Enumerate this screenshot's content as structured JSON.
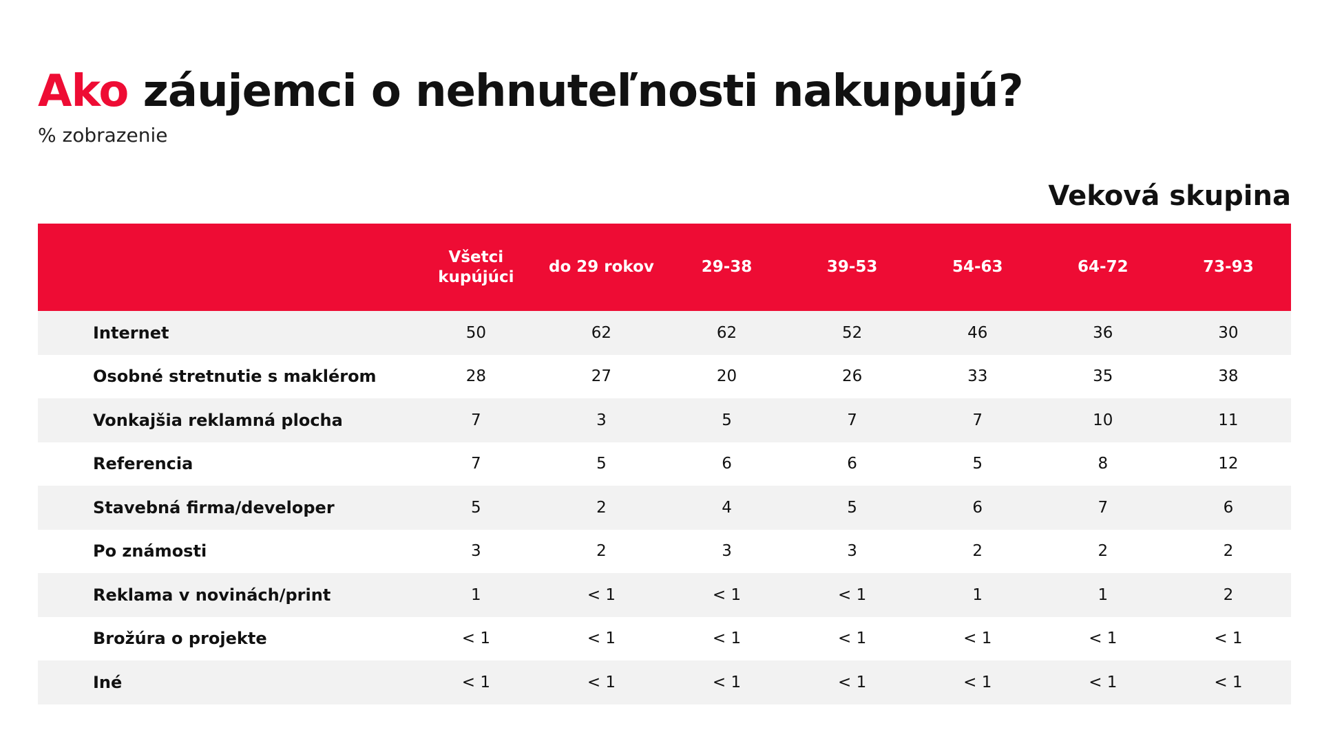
{
  "title": {
    "accent": "Ako",
    "rest": " záujemci o nehnuteľnosti nakupujú?"
  },
  "subtitle": "% zobrazenie",
  "group_label": "Veková skupina",
  "colors": {
    "accent": "#ee0c34",
    "row_stripe": "#f2f2f2"
  },
  "chart_data": {
    "type": "table",
    "title": "Ako záujemci o nehnuteľnosti nakupujú?",
    "subtitle": "% zobrazenie",
    "column_group": "Veková skupina",
    "columns": [
      "Všetci kupújúci",
      "do 29 rokov",
      "29-38",
      "39-53",
      "54-63",
      "64-72",
      "73-93"
    ],
    "rows": [
      {
        "label": "Internet",
        "values": [
          "50",
          "62",
          "62",
          "52",
          "46",
          "36",
          "30"
        ]
      },
      {
        "label": "Osobné stretnutie s maklérom",
        "values": [
          "28",
          "27",
          "20",
          "26",
          "33",
          "35",
          "38"
        ]
      },
      {
        "label": "Vonkajšia reklamná plocha",
        "values": [
          "7",
          "3",
          "5",
          "7",
          "7",
          "10",
          "11"
        ]
      },
      {
        "label": "Referencia",
        "values": [
          "7",
          "5",
          "6",
          "6",
          "5",
          "8",
          "12"
        ]
      },
      {
        "label": "Stavebná firma/developer",
        "values": [
          "5",
          "2",
          "4",
          "5",
          "6",
          "7",
          "6"
        ]
      },
      {
        "label": "Po známosti",
        "values": [
          "3",
          "2",
          "3",
          "3",
          "2",
          "2",
          "2"
        ]
      },
      {
        "label": "Reklama v novinách/print",
        "values": [
          "1",
          "< 1",
          "< 1",
          "< 1",
          "1",
          "1",
          "2"
        ]
      },
      {
        "label": "Brožúra o projekte",
        "values": [
          "< 1",
          "< 1",
          "< 1",
          "< 1",
          "< 1",
          "< 1",
          "< 1"
        ]
      },
      {
        "label": "Iné",
        "values": [
          "< 1",
          "< 1",
          "< 1",
          "< 1",
          "< 1",
          "< 1",
          "< 1"
        ]
      }
    ]
  }
}
